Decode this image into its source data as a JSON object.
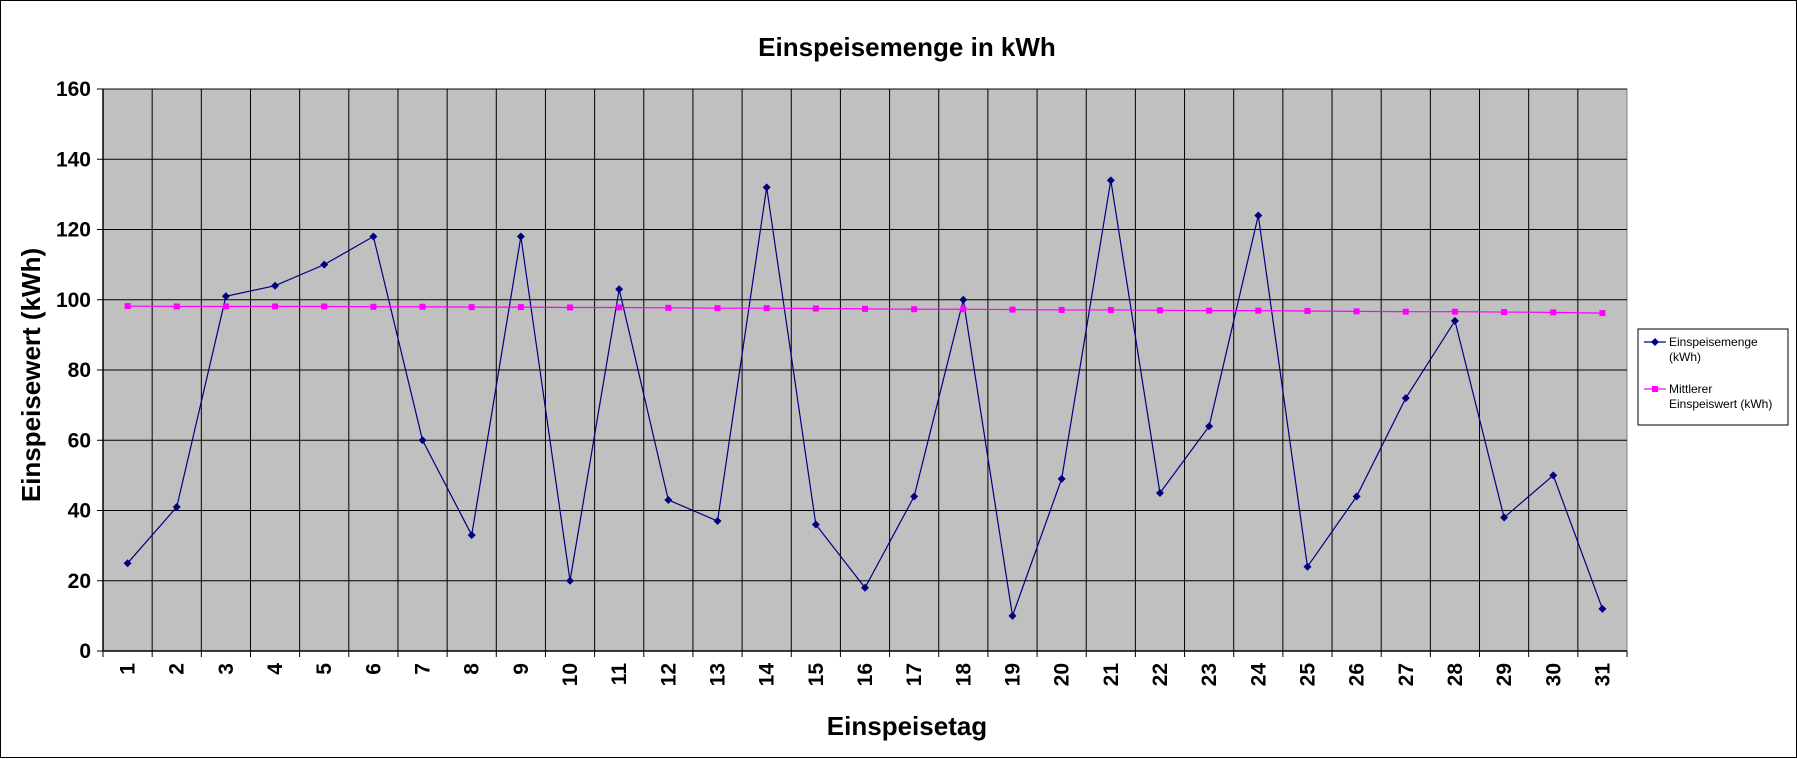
{
  "chart_data": {
    "type": "line",
    "title": "Einspeisemenge in kWh",
    "xlabel": "Einspeisetag",
    "ylabel": "Einspeisewert  (kWh)",
    "ylim": [
      0,
      160
    ],
    "yticks": [
      0,
      20,
      40,
      60,
      80,
      100,
      120,
      140,
      160
    ],
    "grid": true,
    "legend_position": "right",
    "plot_background": "#c0c0c0",
    "categories": [
      "1",
      "2",
      "3",
      "4",
      "5",
      "6",
      "7",
      "8",
      "9",
      "10",
      "11",
      "12",
      "13",
      "14",
      "15",
      "16",
      "17",
      "18",
      "19",
      "20",
      "21",
      "22",
      "23",
      "24",
      "25",
      "26",
      "27",
      "28",
      "29",
      "30",
      "31"
    ],
    "series": [
      {
        "name": "Einspeisemenge (kWh)",
        "legend_lines": [
          "Einspeisemenge",
          "(kWh)"
        ],
        "color": "#000080",
        "marker": "diamond",
        "values": [
          25,
          41,
          101,
          104,
          110,
          118,
          60,
          33,
          118,
          20,
          103,
          43,
          37,
          132,
          36,
          18,
          44,
          100,
          10,
          49,
          134,
          45,
          64,
          124,
          24,
          44,
          72,
          94,
          38,
          50,
          12
        ]
      },
      {
        "name": "Mittlerer Einspeiswert (kWh)",
        "legend_lines": [
          "Mittlerer",
          "Einspeiswert (kWh)"
        ],
        "color": "#ff00ff",
        "marker": "square",
        "values": [
          98.2,
          98.1,
          98.1,
          98.1,
          98.1,
          98.0,
          98.0,
          97.9,
          97.9,
          97.8,
          97.8,
          97.7,
          97.6,
          97.6,
          97.5,
          97.4,
          97.3,
          97.3,
          97.2,
          97.1,
          97.1,
          97.0,
          96.9,
          96.9,
          96.8,
          96.7,
          96.6,
          96.6,
          96.5,
          96.4,
          96.2
        ]
      }
    ]
  }
}
